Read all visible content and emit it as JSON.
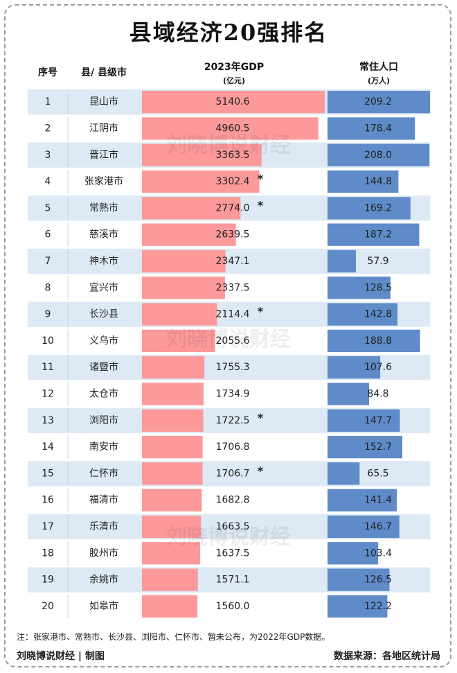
{
  "title": "县域经济20强排名",
  "headers": {
    "rank": "序号",
    "county": "县/ 县级市",
    "gdp": "2023年GDP",
    "gdp_unit": "(亿元)",
    "pop": "常住人口",
    "pop_unit": "(万人)"
  },
  "watermark": "刘晓博说财经",
  "note": "注：张家港市、常熟市、长沙县、浏阳市、仁怀市、暂未公布，为2022年GDP数据。",
  "footer": {
    "author": "刘晓博说财经 | 制图",
    "source": "数据来源：各地区统计局"
  },
  "colors": {
    "gdp_bar": "#fc999b",
    "pop_bar": "#5f8bc8",
    "row_band": "#dde9f4"
  },
  "chart_data": {
    "type": "table",
    "columns": [
      "序号",
      "县/ 县级市",
      "2023年GDP(亿元)",
      "常住人口(万人)"
    ],
    "rows": [
      {
        "rank": "1",
        "name": "昆山市",
        "gdp": 5140.6,
        "gdp_label": "5140.6",
        "pop": 209.2,
        "pop_label": "209.2",
        "mark": ""
      },
      {
        "rank": "2",
        "name": "江阴市",
        "gdp": 4960.5,
        "gdp_label": "4960.5",
        "pop": 178.4,
        "pop_label": "178.4",
        "mark": ""
      },
      {
        "rank": "3",
        "name": "晋江市",
        "gdp": 3363.5,
        "gdp_label": "3363.5",
        "pop": 208.0,
        "pop_label": "208.0",
        "mark": ""
      },
      {
        "rank": "4",
        "name": "张家港市",
        "gdp": 3302.4,
        "gdp_label": "3302.4",
        "pop": 144.8,
        "pop_label": "144.8",
        "mark": "*"
      },
      {
        "rank": "5",
        "name": "常熟市",
        "gdp": 2774.0,
        "gdp_label": "2774.0",
        "pop": 169.2,
        "pop_label": "169.2",
        "mark": "*"
      },
      {
        "rank": "6",
        "name": "慈溪市",
        "gdp": 2639.5,
        "gdp_label": "2639.5",
        "pop": 187.2,
        "pop_label": "187.2",
        "mark": ""
      },
      {
        "rank": "7",
        "name": "神木市",
        "gdp": 2347.1,
        "gdp_label": "2347.1",
        "pop": 57.9,
        "pop_label": "57.9",
        "mark": ""
      },
      {
        "rank": "8",
        "name": "宜兴市",
        "gdp": 2337.5,
        "gdp_label": "2337.5",
        "pop": 128.5,
        "pop_label": "128.5",
        "mark": ""
      },
      {
        "rank": "9",
        "name": "长沙县",
        "gdp": 2114.4,
        "gdp_label": "2114.4",
        "pop": 142.8,
        "pop_label": "142.8",
        "mark": "*"
      },
      {
        "rank": "10",
        "name": "义乌市",
        "gdp": 2055.6,
        "gdp_label": "2055.6",
        "pop": 188.8,
        "pop_label": "188.8",
        "mark": ""
      },
      {
        "rank": "11",
        "name": "诸暨市",
        "gdp": 1755.3,
        "gdp_label": "1755.3",
        "pop": 107.6,
        "pop_label": "107.6",
        "mark": ""
      },
      {
        "rank": "12",
        "name": "太仓市",
        "gdp": 1734.9,
        "gdp_label": "1734.9",
        "pop": 84.8,
        "pop_label": "84.8",
        "mark": ""
      },
      {
        "rank": "13",
        "name": "浏阳市",
        "gdp": 1722.5,
        "gdp_label": "1722.5",
        "pop": 147.7,
        "pop_label": "147.7",
        "mark": "*"
      },
      {
        "rank": "14",
        "name": "南安市",
        "gdp": 1706.8,
        "gdp_label": "1706.8",
        "pop": 152.7,
        "pop_label": "152.7",
        "mark": ""
      },
      {
        "rank": "15",
        "name": "仁怀市",
        "gdp": 1706.7,
        "gdp_label": "1706.7",
        "pop": 65.5,
        "pop_label": "65.5",
        "mark": "*"
      },
      {
        "rank": "16",
        "name": "福清市",
        "gdp": 1682.8,
        "gdp_label": "1682.8",
        "pop": 141.4,
        "pop_label": "141.4",
        "mark": ""
      },
      {
        "rank": "17",
        "name": "乐清市",
        "gdp": 1663.5,
        "gdp_label": "1663.5",
        "pop": 146.7,
        "pop_label": "146.7",
        "mark": ""
      },
      {
        "rank": "18",
        "name": "胶州市",
        "gdp": 1637.5,
        "gdp_label": "1637.5",
        "pop": 103.4,
        "pop_label": "103.4",
        "mark": ""
      },
      {
        "rank": "19",
        "name": "余姚市",
        "gdp": 1571.1,
        "gdp_label": "1571.1",
        "pop": 126.5,
        "pop_label": "126.5",
        "mark": ""
      },
      {
        "rank": "20",
        "name": "如皋市",
        "gdp": 1560.0,
        "gdp_label": "1560.0",
        "pop": 122.2,
        "pop_label": "122.2",
        "mark": ""
      }
    ]
  }
}
